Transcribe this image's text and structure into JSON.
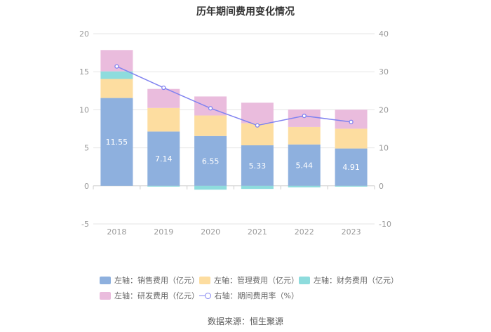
{
  "chart_data": {
    "type": "bar",
    "title": "历年期间费用变化情况",
    "categories": [
      "2018",
      "2019",
      "2020",
      "2021",
      "2022",
      "2023"
    ],
    "series": [
      {
        "name": "左轴：销售费用（亿元）",
        "axis": "left",
        "color": "#8eb0de",
        "values": [
          11.55,
          7.14,
          6.55,
          5.33,
          5.44,
          4.91
        ]
      },
      {
        "name": "左轴：管理费用（亿元）",
        "axis": "left",
        "color": "#fddda0",
        "values": [
          2.5,
          3.1,
          2.7,
          2.9,
          2.3,
          2.6
        ]
      },
      {
        "name": "左轴：财务费用（亿元）",
        "axis": "left",
        "color": "#8edcdd",
        "values": [
          1.0,
          -0.1,
          -0.5,
          -0.4,
          -0.2,
          -0.1
        ]
      },
      {
        "name": "左轴：研发费用（亿元）",
        "axis": "left",
        "color": "#eabcdd",
        "values": [
          2.8,
          2.5,
          2.5,
          2.7,
          2.3,
          2.5
        ]
      },
      {
        "name": "右轴：期间费用率（%）",
        "axis": "right",
        "type": "line",
        "color": "#8183f0",
        "values": [
          31.4,
          25.8,
          20.4,
          15.9,
          18.4,
          16.8
        ]
      }
    ],
    "data_labels": [
      "11.55",
      "7.14",
      "6.55",
      "5.33",
      "5.44",
      "4.91"
    ],
    "y_left": {
      "ylim": [
        -5,
        20
      ],
      "ticks": [
        -5,
        0,
        5,
        10,
        15,
        20
      ]
    },
    "y_right": {
      "ylim": [
        -10,
        40
      ],
      "ticks": [
        -10,
        0,
        10,
        20,
        30,
        40
      ]
    },
    "grid": true,
    "legend_position": "bottom"
  },
  "source": "数据来源：恒生聚源"
}
